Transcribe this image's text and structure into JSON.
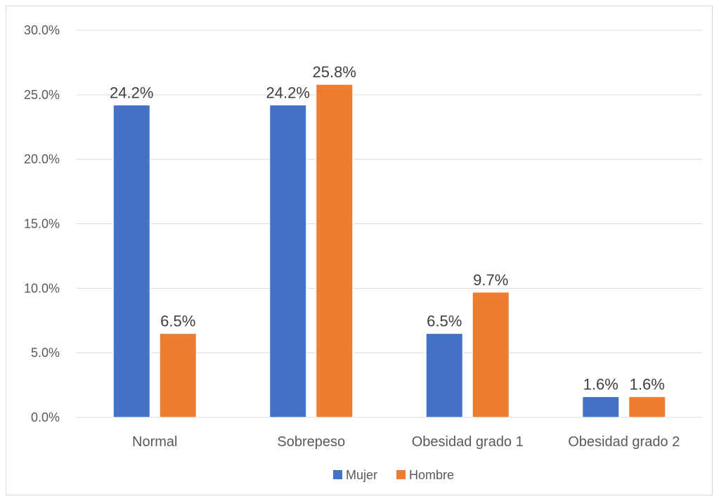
{
  "chart_data": {
    "type": "bar",
    "categories": [
      "Normal",
      "Sobrepeso",
      "Obesidad grado 1",
      "Obesidad grado 2"
    ],
    "series": [
      {
        "name": "Mujer",
        "values": [
          24.2,
          24.2,
          6.5,
          1.6
        ],
        "labels": [
          "24.2%",
          "24.2%",
          "6.5%",
          "1.6%"
        ],
        "color": "#4472c4"
      },
      {
        "name": "Hombre",
        "values": [
          6.5,
          25.8,
          9.7,
          1.6
        ],
        "labels": [
          "6.5%",
          "25.8%",
          "9.7%",
          "1.6%"
        ],
        "color": "#ed7d31"
      }
    ],
    "ylim": [
      0,
      30
    ],
    "yticks": [
      0,
      5,
      10,
      15,
      20,
      25,
      30
    ],
    "ytick_labels": [
      "0.0%",
      "5.0%",
      "10.0%",
      "15.0%",
      "20.0%",
      "25.0%",
      "30.0%"
    ],
    "title": "",
    "xlabel": "",
    "ylabel": "",
    "grid": true,
    "legend_position": "bottom-center"
  },
  "colors": {
    "grid": "#d9d9d9",
    "axis_text": "#595959",
    "data_label": "#404040"
  }
}
